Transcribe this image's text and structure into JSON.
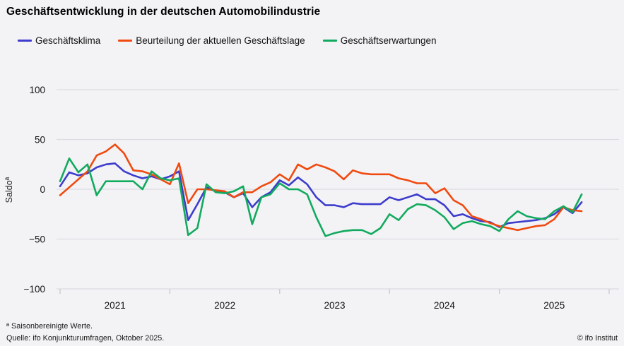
{
  "header": {
    "title": "Geschäftsentwicklung in der deutschen Automobilindustrie"
  },
  "legend": [
    {
      "label": "Geschäftsklima",
      "color": "#3d3ccc"
    },
    {
      "label": "Beurteilung der aktuellen Geschäftslage",
      "color": "#f04a0f"
    },
    {
      "label": "Geschäftserwartungen",
      "color": "#12aa5e"
    }
  ],
  "footer": {
    "footnote": "ª Saisonbereinigte Werte.",
    "source": "Quelle: ifo Konjunkturumfragen, Oktober 2025.",
    "copyright": "© ifo Institut"
  },
  "chart_data": {
    "type": "line",
    "title": "Geschäftsentwicklung in der deutschen Automobilindustrie",
    "xlabel": "",
    "ylabel": "Saldoª",
    "ylim": [
      -100,
      100
    ],
    "yticks": [
      100,
      50,
      0,
      -50,
      -100
    ],
    "x_tick_years": [
      "2021",
      "2022",
      "2023",
      "2024",
      "2025"
    ],
    "grid": true,
    "legend_position": "top",
    "months": [
      "2021-01",
      "2021-02",
      "2021-03",
      "2021-04",
      "2021-05",
      "2021-06",
      "2021-07",
      "2021-08",
      "2021-09",
      "2021-10",
      "2021-11",
      "2021-12",
      "2022-01",
      "2022-02",
      "2022-03",
      "2022-04",
      "2022-05",
      "2022-06",
      "2022-07",
      "2022-08",
      "2022-09",
      "2022-10",
      "2022-11",
      "2022-12",
      "2023-01",
      "2023-02",
      "2023-03",
      "2023-04",
      "2023-05",
      "2023-06",
      "2023-07",
      "2023-08",
      "2023-09",
      "2023-10",
      "2023-11",
      "2023-12",
      "2024-01",
      "2024-02",
      "2024-03",
      "2024-04",
      "2024-05",
      "2024-06",
      "2024-07",
      "2024-08",
      "2024-09",
      "2024-10",
      "2024-11",
      "2024-12",
      "2025-01",
      "2025-02",
      "2025-03",
      "2025-04",
      "2025-05",
      "2025-06",
      "2025-07",
      "2025-08",
      "2025-09",
      "2025-10"
    ],
    "series": [
      {
        "name": "Geschäftsklima",
        "color": "#3d3ccc",
        "values": [
          3,
          17,
          14,
          16,
          22,
          25,
          26,
          18,
          14,
          11,
          13,
          10,
          13,
          18,
          -31,
          -15,
          2,
          -2,
          -3,
          -8,
          -4,
          -18,
          -8,
          -3,
          9,
          4,
          12,
          5,
          -8,
          -16,
          -16,
          -18,
          -14,
          -15,
          -15,
          -15,
          -8,
          -11,
          -8,
          -5,
          -10,
          -10,
          -16,
          -27,
          -25,
          -29,
          -32,
          -33,
          -38,
          -34,
          -33,
          -32,
          -31,
          -29,
          -25,
          -18,
          -24,
          -13
        ]
      },
      {
        "name": "Beurteilung der aktuellen Geschäftslage",
        "color": "#f04a0f",
        "values": [
          -6,
          2,
          10,
          18,
          34,
          38,
          45,
          36,
          19,
          18,
          15,
          10,
          5,
          26,
          -14,
          0,
          0,
          -1,
          -2,
          -8,
          -3,
          -3,
          3,
          7,
          15,
          9,
          25,
          20,
          25,
          22,
          18,
          10,
          19,
          16,
          15,
          15,
          15,
          11,
          9,
          6,
          6,
          -4,
          1,
          -11,
          -16,
          -27,
          -30,
          -34,
          -37,
          -39,
          -41,
          -39,
          -37,
          -36,
          -30,
          -18,
          -21,
          -22
        ]
      },
      {
        "name": "Geschäftserwartungen",
        "color": "#12aa5e",
        "values": [
          8,
          31,
          17,
          25,
          -6,
          8,
          8,
          8,
          8,
          0,
          18,
          11,
          9,
          11,
          -46,
          -39,
          5,
          -3,
          -4,
          -2,
          3,
          -35,
          -8,
          -5,
          6,
          0,
          0,
          -5,
          -28,
          -47,
          -44,
          -42,
          -41,
          -41,
          -45,
          -39,
          -25,
          -31,
          -20,
          -15,
          -16,
          -21,
          -28,
          -40,
          -34,
          -32,
          -35,
          -37,
          -42,
          -30,
          -22,
          -27,
          -29,
          -30,
          -22,
          -17,
          -23,
          -5
        ]
      }
    ],
    "colors": {
      "background": "#f3f3f6",
      "gridline": "#dcdce1",
      "axis": "#c4c4ca",
      "text": "#111111"
    }
  }
}
